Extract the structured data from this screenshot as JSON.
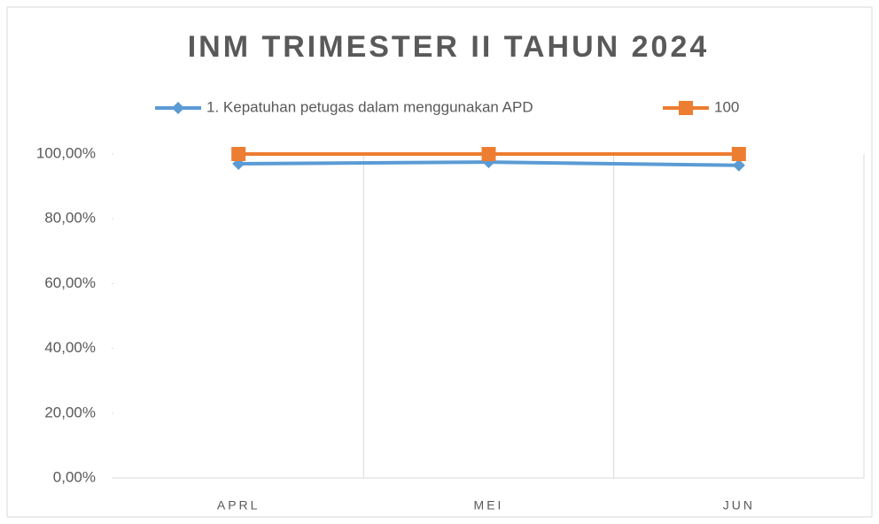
{
  "chart_data": {
    "type": "line",
    "title": "INM TRIMESTER II TAHUN 2024",
    "categories": [
      "APRL",
      "MEI",
      "JUN"
    ],
    "series": [
      {
        "name": "1. Kepatuhan petugas dalam menggunakan APD",
        "color": "#5b9bd5",
        "marker": "diamond",
        "values": [
          97,
          97.5,
          96.5
        ]
      },
      {
        "name": "100",
        "color": "#ed7d31",
        "marker": "square",
        "values": [
          100,
          100,
          100
        ]
      }
    ],
    "ylim": [
      0,
      100
    ],
    "yticks": [
      {
        "value": 0,
        "label": "0,00%"
      },
      {
        "value": 20,
        "label": "20,00%"
      },
      {
        "value": 40,
        "label": "40,00%"
      },
      {
        "value": 60,
        "label": "60,00%"
      },
      {
        "value": 80,
        "label": "80,00%"
      },
      {
        "value": 100,
        "label": "100,00%"
      }
    ],
    "legend": "top"
  }
}
